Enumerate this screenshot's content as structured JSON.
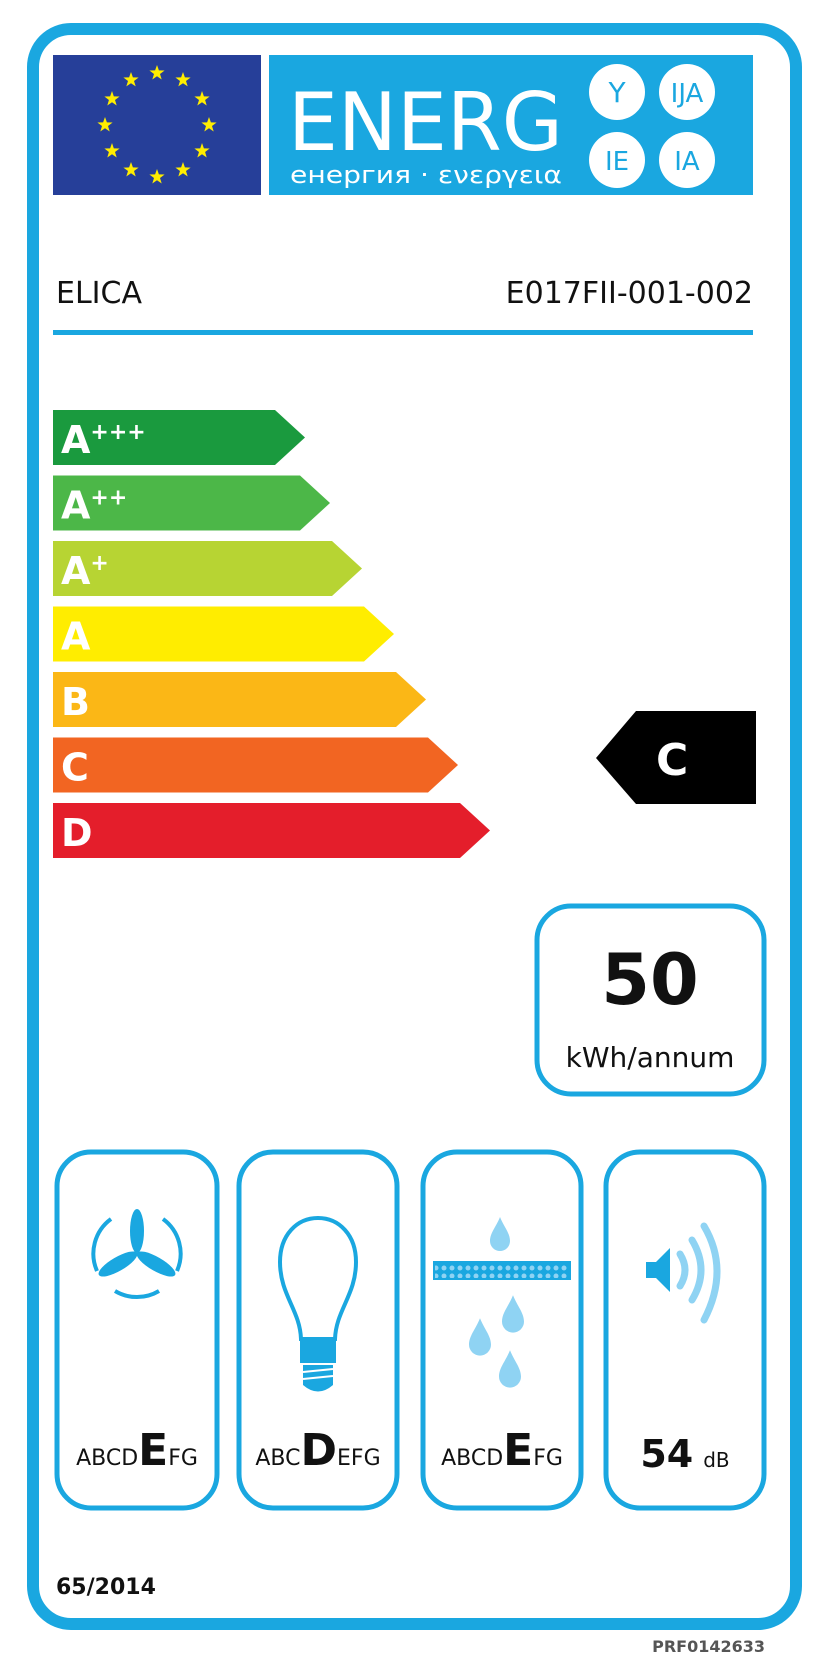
{
  "header": {
    "energy_word": "ENERG",
    "energy_subtitle": "енергия · ενεργεια",
    "suffixes": [
      "Y",
      "IJA",
      "IE",
      "IA"
    ]
  },
  "supplier": "ELICA",
  "model": "E017FII-001-002",
  "scale": [
    {
      "label": "A",
      "plus": "+++",
      "color": "#1a9a3e"
    },
    {
      "label": "A",
      "plus": "++",
      "color": "#4cb748"
    },
    {
      "label": "A",
      "plus": "+",
      "color": "#b7d433"
    },
    {
      "label": "A",
      "plus": "",
      "color": "#ffed00"
    },
    {
      "label": "B",
      "plus": "",
      "color": "#fbb716"
    },
    {
      "label": "C",
      "plus": "",
      "color": "#f26522"
    },
    {
      "label": "D",
      "plus": "",
      "color": "#e41e2b"
    }
  ],
  "rating": {
    "class": "C",
    "index": 5
  },
  "consumption": {
    "value": "50",
    "unit": "kWh/annum"
  },
  "classes": [
    {
      "icon": "fan-icon",
      "pre": "ABCD",
      "grade": "E",
      "post": "FG"
    },
    {
      "icon": "light-bulb-icon",
      "pre": "ABC",
      "grade": "D",
      "post": "EFG"
    },
    {
      "icon": "grease-filter-icon",
      "pre": "ABCD",
      "grade": "E",
      "post": "FG"
    }
  ],
  "noise": {
    "value": "54",
    "unit": "dB",
    "icon": "speaker-icon"
  },
  "regulation": "65/2014",
  "product_code": "PRF0142633",
  "colors": {
    "label_blue": "#1aa7e0",
    "eu_blue": "#263f99",
    "eu_star": "#ffed00",
    "icon_light": "#8fd3f3"
  }
}
